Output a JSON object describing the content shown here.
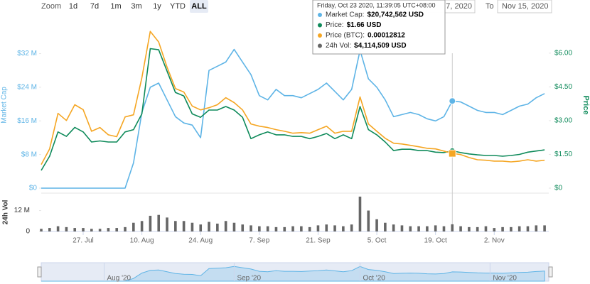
{
  "toolbar": {
    "zoom_label": "Zoom",
    "buttons": [
      "1d",
      "7d",
      "1m",
      "3m",
      "1y",
      "YTD",
      "ALL"
    ],
    "selected": 6,
    "from_value": "7, 2020",
    "to_label": "To",
    "to_value": "Nov 15, 2020"
  },
  "tooltip": {
    "date": "Friday, Oct 23 2020, 11:39:05 UTC+08:00",
    "rows": [
      {
        "label": "Market Cap:",
        "value": "$20,742,562 USD"
      },
      {
        "label": "Price:",
        "value": "$1.66 USD"
      },
      {
        "label": "Price (BTC):",
        "value": "0.00012812"
      },
      {
        "label": "24h Vol:",
        "value": "$4,114,509 USD"
      }
    ]
  },
  "chart_data": {
    "type": "line",
    "x": [
      "2020-07-17",
      "2020-07-19",
      "2020-07-21",
      "2020-07-23",
      "2020-07-25",
      "2020-07-27",
      "2020-07-29",
      "2020-07-31",
      "2020-08-02",
      "2020-08-04",
      "2020-08-06",
      "2020-08-08",
      "2020-08-10",
      "2020-08-12",
      "2020-08-14",
      "2020-08-16",
      "2020-08-18",
      "2020-08-20",
      "2020-08-22",
      "2020-08-24",
      "2020-08-26",
      "2020-08-28",
      "2020-08-30",
      "2020-09-01",
      "2020-09-03",
      "2020-09-05",
      "2020-09-07",
      "2020-09-09",
      "2020-09-11",
      "2020-09-13",
      "2020-09-15",
      "2020-09-17",
      "2020-09-19",
      "2020-09-21",
      "2020-09-23",
      "2020-09-25",
      "2020-09-27",
      "2020-09-29",
      "2020-10-01",
      "2020-10-03",
      "2020-10-05",
      "2020-10-07",
      "2020-10-09",
      "2020-10-11",
      "2020-10-13",
      "2020-10-15",
      "2020-10-17",
      "2020-10-19",
      "2020-10-21",
      "2020-10-23",
      "2020-10-25",
      "2020-10-27",
      "2020-10-29",
      "2020-10-31",
      "2020-11-02",
      "2020-11-04",
      "2020-11-06",
      "2020-11-08",
      "2020-11-10",
      "2020-11-12",
      "2020-11-14"
    ],
    "xlim": [
      "2020-07-17",
      "2020-11-15"
    ],
    "xticks": [
      {
        "value": "2020-07-27",
        "label": "27. Jul"
      },
      {
        "value": "2020-08-10",
        "label": "10. Aug"
      },
      {
        "value": "2020-08-24",
        "label": "24. Aug"
      },
      {
        "value": "2020-09-07",
        "label": "7. Sep"
      },
      {
        "value": "2020-09-21",
        "label": "21. Sep"
      },
      {
        "value": "2020-10-05",
        "label": "5. Oct"
      },
      {
        "value": "2020-10-19",
        "label": "19. Oct"
      },
      {
        "value": "2020-11-02",
        "label": "2. Nov"
      }
    ],
    "ylabel": "Market Cap",
    "ylim": [
      0,
      38
    ],
    "yticks": [
      {
        "value": 0,
        "label": "$0"
      },
      {
        "value": 8,
        "label": "$8 M"
      },
      {
        "value": 16,
        "label": "$16 M"
      },
      {
        "value": 24,
        "label": "$24 M"
      },
      {
        "value": 32,
        "label": "$32 M"
      }
    ],
    "y2label": "Price",
    "y2lim": [
      0,
      7.1
    ],
    "y2ticks": [
      {
        "value": 0,
        "label": "$0"
      },
      {
        "value": 1.5,
        "label": "$1.50"
      },
      {
        "value": 3,
        "label": "$3.00"
      },
      {
        "value": 4.5,
        "label": "$4.50"
      },
      {
        "value": 6,
        "label": "$6.00"
      }
    ],
    "y3lim": [
      0,
      0.00059
    ],
    "crosshair": "2020-10-23",
    "series": [
      {
        "color": "#5eb4e6",
        "values": [
          0,
          0,
          0,
          0,
          0,
          0,
          0,
          0,
          0,
          0,
          0,
          6,
          18,
          24,
          25,
          21,
          17,
          15.5,
          15,
          12,
          28,
          29,
          30,
          33,
          30,
          27,
          22,
          21,
          23.5,
          22,
          22,
          21.5,
          22.5,
          23.5,
          25,
          23,
          21,
          23.5,
          32.8,
          26,
          24,
          21,
          17,
          17.5,
          18,
          17.5,
          16.5,
          16,
          17,
          20.74,
          20.5,
          19.5,
          18.5,
          18,
          18,
          17.5,
          18.5,
          19.5,
          20,
          21.5,
          22.5
        ]
      },
      {
        "color": "#0e8a5a",
        "axis": "y2",
        "values": [
          0.79,
          1.42,
          2.5,
          2.3,
          2.7,
          2.5,
          2.05,
          2.1,
          2.05,
          2.05,
          2.5,
          2.6,
          3.3,
          6.2,
          6.15,
          5.2,
          4.25,
          4.1,
          3.3,
          3.15,
          3.47,
          3.47,
          3.63,
          3.47,
          3.15,
          2.2,
          2.37,
          2.5,
          2.37,
          2.37,
          2.3,
          2.3,
          2.2,
          2.3,
          2.43,
          2.2,
          2.37,
          2.2,
          3.63,
          2.6,
          2.37,
          2.05,
          1.67,
          1.73,
          1.73,
          1.67,
          1.67,
          1.6,
          1.58,
          1.66,
          1.58,
          1.52,
          1.48,
          1.45,
          1.45,
          1.42,
          1.45,
          1.5,
          1.6,
          1.65,
          1.7
        ]
      },
      {
        "color": "#f5a623",
        "axis": "y3",
        "values": [
          8.7e-05,
          0.000145,
          0.000276,
          0.00025,
          0.000308,
          0.00029,
          0.00021,
          0.000224,
          0.000197,
          0.00019,
          0.000263,
          0.000271,
          0.000408,
          0.000579,
          0.00054,
          0.000447,
          0.000368,
          0.000355,
          0.000303,
          0.000289,
          0.000297,
          0.000308,
          0.000334,
          0.000316,
          0.000289,
          0.000237,
          0.000229,
          0.000224,
          0.000216,
          0.00021,
          0.000203,
          0.000205,
          0.000203,
          0.000216,
          0.000229,
          0.000203,
          0.00021,
          0.00021,
          0.000337,
          0.000237,
          0.00021,
          0.000184,
          0.000166,
          0.000163,
          0.000158,
          0.000153,
          0.000147,
          0.000145,
          0.000137,
          0.00012812,
          0.000124,
          0.000113,
          0.000105,
          0.000103,
          0.0001,
          0.0001,
          9.7e-05,
          0.0001,
          0.000105,
          0.0001,
          0.000103
        ]
      }
    ]
  },
  "volume": {
    "type": "bar",
    "ylabel": "24h Vol",
    "color": "#666666",
    "ylim": [
      0,
      22
    ],
    "yticks": [
      0,
      {
        "value": 12,
        "label": "12 M"
      }
    ],
    "values": [
      1.5,
      2,
      3,
      2.5,
      2,
      2,
      1.5,
      1.5,
      2,
      2,
      2.5,
      5,
      6,
      9,
      9.5,
      8,
      6,
      6,
      5,
      4,
      5.5,
      4.5,
      6,
      5,
      4,
      3.5,
      3,
      3,
      2.5,
      2.5,
      3,
      3,
      2.5,
      3.5,
      4,
      3.5,
      3,
      4,
      20,
      12,
      7,
      5,
      4,
      3.5,
      3,
      3,
      3,
      3.5,
      3,
      4.11,
      3,
      2.5,
      2.5,
      3,
      2,
      2.5,
      2.5,
      3,
      3,
      3.5,
      3.5
    ]
  },
  "navigator": {
    "xticks": [
      {
        "value": "2020-08-01",
        "label": "Aug '20"
      },
      {
        "value": "2020-09-01",
        "label": "Sep '20"
      },
      {
        "value": "2020-10-01",
        "label": "Oct '20"
      },
      {
        "value": "2020-11-01",
        "label": "Nov '20"
      }
    ]
  }
}
